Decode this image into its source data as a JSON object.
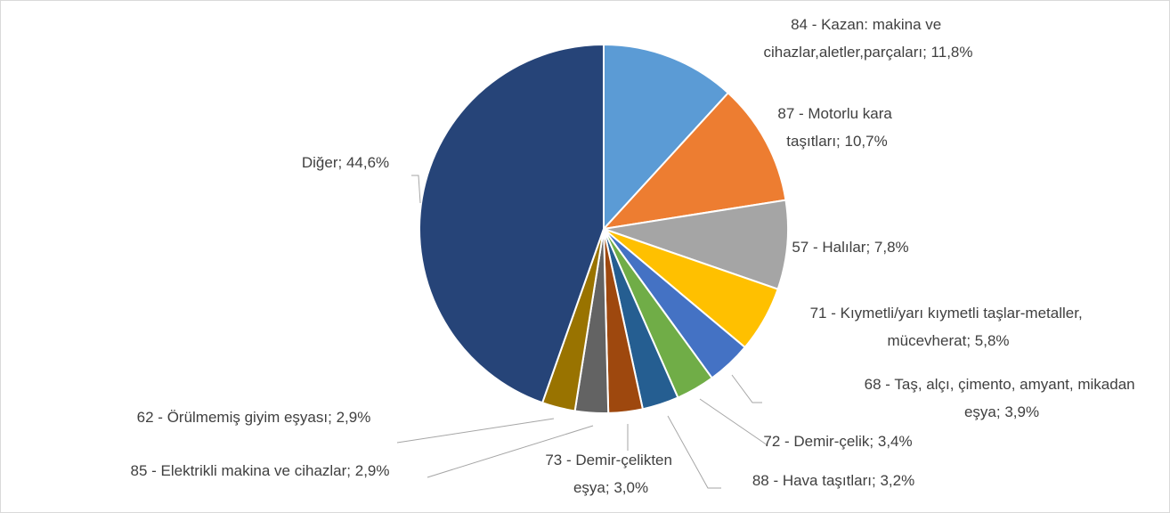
{
  "chart_data": {
    "type": "pie",
    "categories": [
      "84 - Kazan: makina ve cihazlar,aletler,parçaları",
      "87 - Motorlu kara taşıtları",
      "57 - Halılar",
      "71 - Kıymetli/yarı kıymetli taşlar-metaller, mücevherat",
      "68 - Taş, alçı, çimento, amyant, mikadan eşya",
      "72 - Demir-çelik",
      "88 - Hava taşıtları",
      "73 - Demir-çelikten eşya",
      "85 - Elektrikli makina ve cihazlar",
      "62 - Örülmemiş giyim eşyası",
      "Diğer"
    ],
    "values": [
      11.8,
      10.7,
      7.8,
      5.8,
      3.9,
      3.4,
      3.2,
      3.0,
      2.9,
      2.9,
      44.6
    ],
    "value_labels": [
      "11,8%",
      "10,7%",
      "7,8%",
      "5,8%",
      "3,9%",
      "3,4%",
      "3,2%",
      "3,0%",
      "2,9%",
      "2,9%",
      "44,6%"
    ],
    "label_separator": "; ",
    "colors": [
      "#5b9bd5",
      "#ed7d31",
      "#a5a5a5",
      "#ffc000",
      "#4472c4",
      "#70ad47",
      "#255e91",
      "#9e480e",
      "#636363",
      "#997300",
      "#264478"
    ]
  }
}
